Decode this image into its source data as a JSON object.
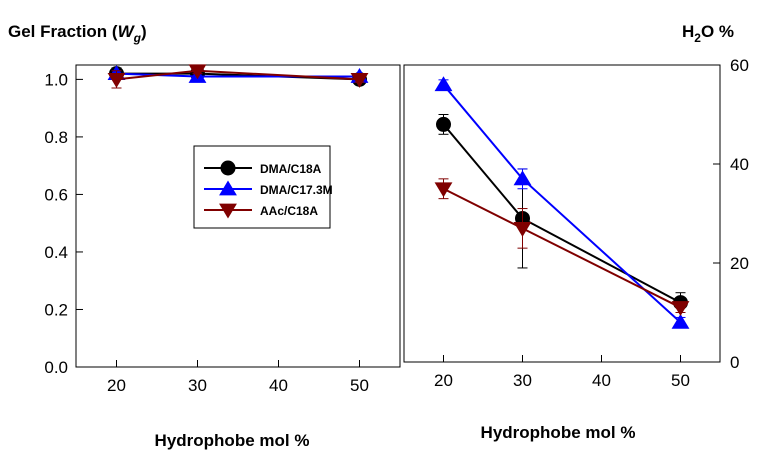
{
  "chart_data": [
    {
      "type": "line",
      "panel": "left",
      "ylabel_prefix": "Gel Fraction (",
      "ylabel_var": "W",
      "ylabel_sub": "g",
      "ylabel_suffix": ")",
      "xlabel": "Hydrophobe  mol %",
      "xlim": [
        15,
        55
      ],
      "ylim": [
        0,
        1.05
      ],
      "x_ticks": [
        20,
        30,
        40,
        50
      ],
      "x_tick_labels": [
        "20",
        "30",
        "40",
        "50"
      ],
      "y_ticks": [
        0,
        0.2,
        0.4,
        0.6,
        0.8,
        1.0
      ],
      "y_tick_labels": [
        "0.0",
        "0.2",
        "0.4",
        "0.6",
        "0.8",
        "1.0"
      ],
      "series": [
        {
          "name": "DMA/C18A",
          "color": "#000000",
          "marker": "circle",
          "x": [
            20,
            30,
            50
          ],
          "y": [
            1.02,
            1.02,
            1.0
          ],
          "err": [
            0.02,
            0.01,
            0.01
          ]
        },
        {
          "name": "DMA/C17.3M",
          "color": "#0000ff",
          "marker": "triangle-up",
          "x": [
            20,
            30,
            50
          ],
          "y": [
            1.02,
            1.01,
            1.01
          ],
          "err": [
            0.01,
            0.01,
            0.01
          ]
        },
        {
          "name": "AAc/C18A",
          "color": "#800000",
          "marker": "triangle-down",
          "x": [
            20,
            30,
            50
          ],
          "y": [
            1.0,
            1.03,
            1.0
          ],
          "err": [
            0.03,
            0.01,
            0.01
          ]
        }
      ],
      "legend_position": "center"
    },
    {
      "type": "line",
      "panel": "right",
      "ylabel_main": "H",
      "ylabel_sub": "2",
      "ylabel_rest": "O %",
      "xlabel": "Hydrophobe  mol %",
      "xlim": [
        15,
        55
      ],
      "ylim": [
        0,
        60
      ],
      "x_ticks": [
        20,
        30,
        40,
        50
      ],
      "x_tick_labels": [
        "20",
        "30",
        "40",
        "50"
      ],
      "y_ticks": [
        0,
        20,
        40,
        60
      ],
      "y_tick_labels": [
        "0",
        "20",
        "40",
        "60"
      ],
      "series": [
        {
          "name": "DMA/C18A",
          "color": "#000000",
          "marker": "circle",
          "x": [
            20,
            30,
            50
          ],
          "y": [
            48,
            29,
            12
          ],
          "err": [
            2,
            10,
            2
          ]
        },
        {
          "name": "DMA/C17.3M",
          "color": "#0000ff",
          "marker": "triangle-up",
          "x": [
            20,
            30,
            50
          ],
          "y": [
            56,
            37,
            8
          ],
          "err": [
            1,
            2,
            1
          ]
        },
        {
          "name": "AAc/C18A",
          "color": "#800000",
          "marker": "triangle-down",
          "x": [
            20,
            30,
            50
          ],
          "y": [
            35,
            27,
            11
          ],
          "err": [
            2,
            4,
            1
          ]
        }
      ]
    }
  ]
}
